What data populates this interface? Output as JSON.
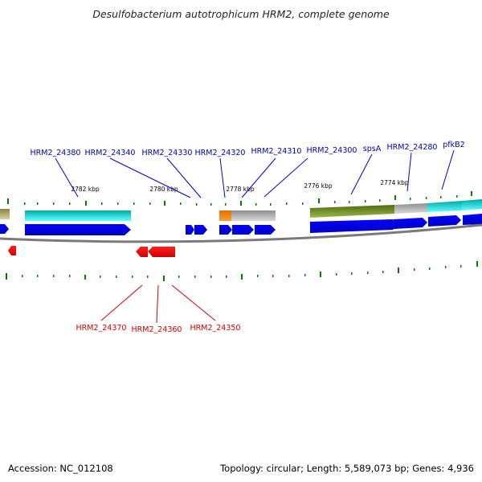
{
  "title": "Desulfobacterium autotrophicum HRM2, complete genome",
  "footer": {
    "accession": "Accession: NC_012108",
    "summary": "Topology: circular; Length: 5,589,073 bp; Genes: 4,936"
  },
  "ticks": [
    "2782 kbp",
    "2780 kbp",
    "2778 kbp",
    "2776 kbp",
    "2774 kbp"
  ],
  "genes_plus": [
    "HRM2_24380",
    "HRM2_24340",
    "HRM2_24330",
    "HRM2_24320",
    "HRM2_24310",
    "HRM2_24300",
    "spsA",
    "HRM2_24280",
    "pfkB2"
  ],
  "genes_minus": [
    "HRM2_24370",
    "HRM2_24360",
    "HRM2_24350"
  ],
  "colors": {
    "plus_strand": "#0000ee",
    "minus_strand": "#ee0000",
    "backbone": "#808080",
    "tick": "#008000",
    "label_plus": "#0000aa",
    "label_minus": "#cc0000",
    "cog_olive": "#b8b070",
    "cog_cyan": "#00e0e0",
    "cog_orange": "#ff8c00",
    "cog_gray": "#b0b0b0",
    "cog_green": "#6b8e23"
  }
}
